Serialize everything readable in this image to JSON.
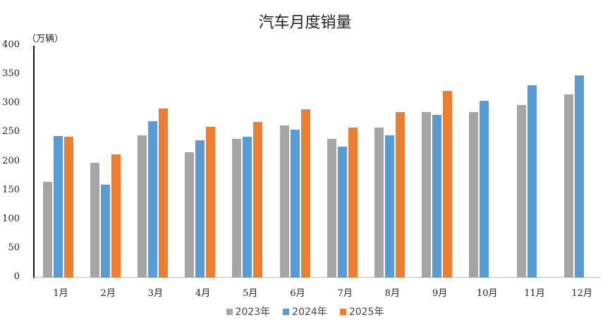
{
  "chart_data": {
    "type": "bar",
    "title": "汽车月度销量",
    "ylabel": "（万辆）",
    "xlabel": "",
    "ylim": [
      0,
      400
    ],
    "yticks": [
      0,
      50,
      100,
      150,
      200,
      250,
      300,
      350,
      400
    ],
    "grid": false,
    "legend_position": "bottom",
    "categories": [
      "1月",
      "2月",
      "3月",
      "4月",
      "5月",
      "6月",
      "7月",
      "8月",
      "9月",
      "10月",
      "11月",
      "12月"
    ],
    "series": [
      {
        "name": "2023年",
        "color": "#A5A5A5",
        "values": [
          165,
          198,
          246,
          216,
          239,
          263,
          239,
          259,
          286,
          286,
          298,
          316
        ]
      },
      {
        "name": "2024年",
        "color": "#5B9BD5",
        "values": [
          244,
          160,
          270,
          237,
          243,
          255,
          226,
          246,
          281,
          305,
          332,
          349
        ]
      },
      {
        "name": "2025年",
        "color": "#ED7D31",
        "values": [
          243,
          213,
          292,
          260,
          269,
          291,
          259,
          286,
          322,
          null,
          null,
          null
        ]
      }
    ]
  }
}
